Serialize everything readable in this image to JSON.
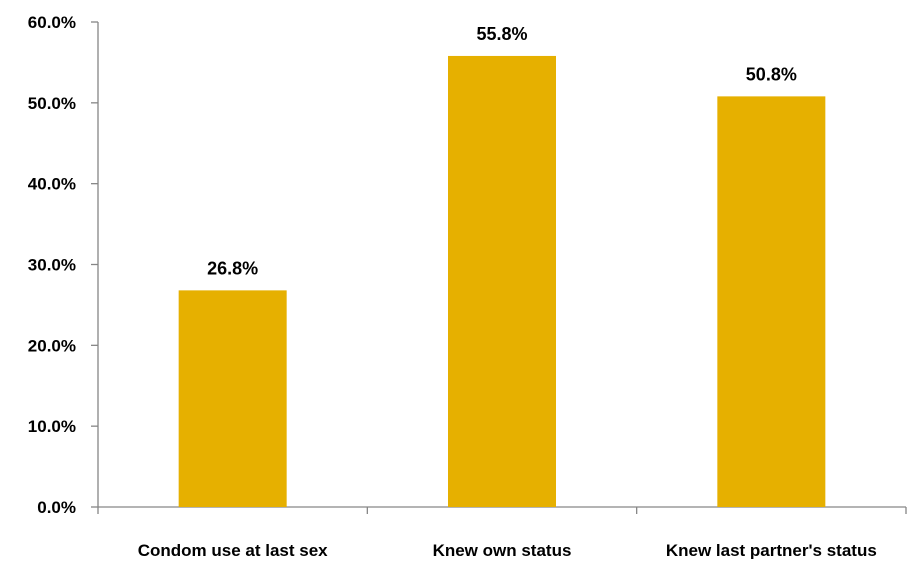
{
  "chart_data": {
    "type": "bar",
    "categories": [
      "Condom use at last sex",
      "Knew own status",
      "Knew last partner's status"
    ],
    "values": [
      26.8,
      55.8,
      50.8
    ],
    "data_labels": [
      "26.8%",
      "55.8%",
      "50.8%"
    ],
    "y_tick_labels": [
      "0.0%",
      "10.0%",
      "20.0%",
      "30.0%",
      "40.0%",
      "50.0%",
      "60.0%"
    ],
    "ylim": [
      0,
      60
    ],
    "title": "",
    "xlabel": "",
    "ylabel": "",
    "grid": false,
    "legend": "none",
    "bar_color": "#E6B000",
    "axis_color": "#868686"
  }
}
